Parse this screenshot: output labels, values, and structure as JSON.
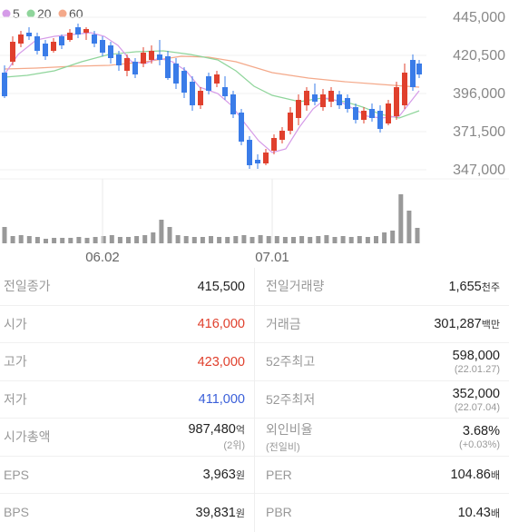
{
  "chart": {
    "legend": [
      {
        "label": "5",
        "color": "#d59be8"
      },
      {
        "label": "20",
        "color": "#8fd59b"
      },
      {
        "label": "60",
        "color": "#f4a98a"
      }
    ],
    "y_labels": [
      "445,000",
      "420,500",
      "396,000",
      "371,500",
      "347,000"
    ],
    "x_labels": [
      "06.02",
      "07.01"
    ],
    "up_color": "#e0402d",
    "down_color": "#3a7ce8",
    "volume_color": "#999999"
  },
  "stats": {
    "left": [
      {
        "label": "전일종가",
        "value": "415,500",
        "color": "default"
      },
      {
        "label": "시가",
        "value": "416,000",
        "color": "red"
      },
      {
        "label": "고가",
        "value": "423,000",
        "color": "red"
      },
      {
        "label": "저가",
        "value": "411,000",
        "color": "blue"
      },
      {
        "label": "시가총액",
        "value": "987,480",
        "unit": "억",
        "sub": "(2위)",
        "color": "default"
      },
      {
        "label": "EPS",
        "value": "3,963",
        "unit": "원",
        "color": "default"
      },
      {
        "label": "BPS",
        "value": "39,831",
        "unit": "원",
        "color": "default"
      }
    ],
    "right": [
      {
        "label": "전일거래량",
        "value": "1,655",
        "unit": "천주",
        "color": "default"
      },
      {
        "label": "거래금",
        "value": "301,287",
        "unit": "백만",
        "color": "default"
      },
      {
        "label": "52주최고",
        "value": "598,000",
        "sub": "(22.01.27)",
        "color": "default"
      },
      {
        "label": "52주최저",
        "value": "352,000",
        "sub": "(22.07.04)",
        "color": "default"
      },
      {
        "label": "외인비율",
        "sublabel": "(전일비)",
        "value": "3.68%",
        "sub": "(+0.03%)",
        "color": "default"
      },
      {
        "label": "PER",
        "value": "104.86",
        "unit": "배",
        "color": "default"
      },
      {
        "label": "PBR",
        "value": "10.43",
        "unit": "배",
        "color": "default"
      }
    ]
  }
}
